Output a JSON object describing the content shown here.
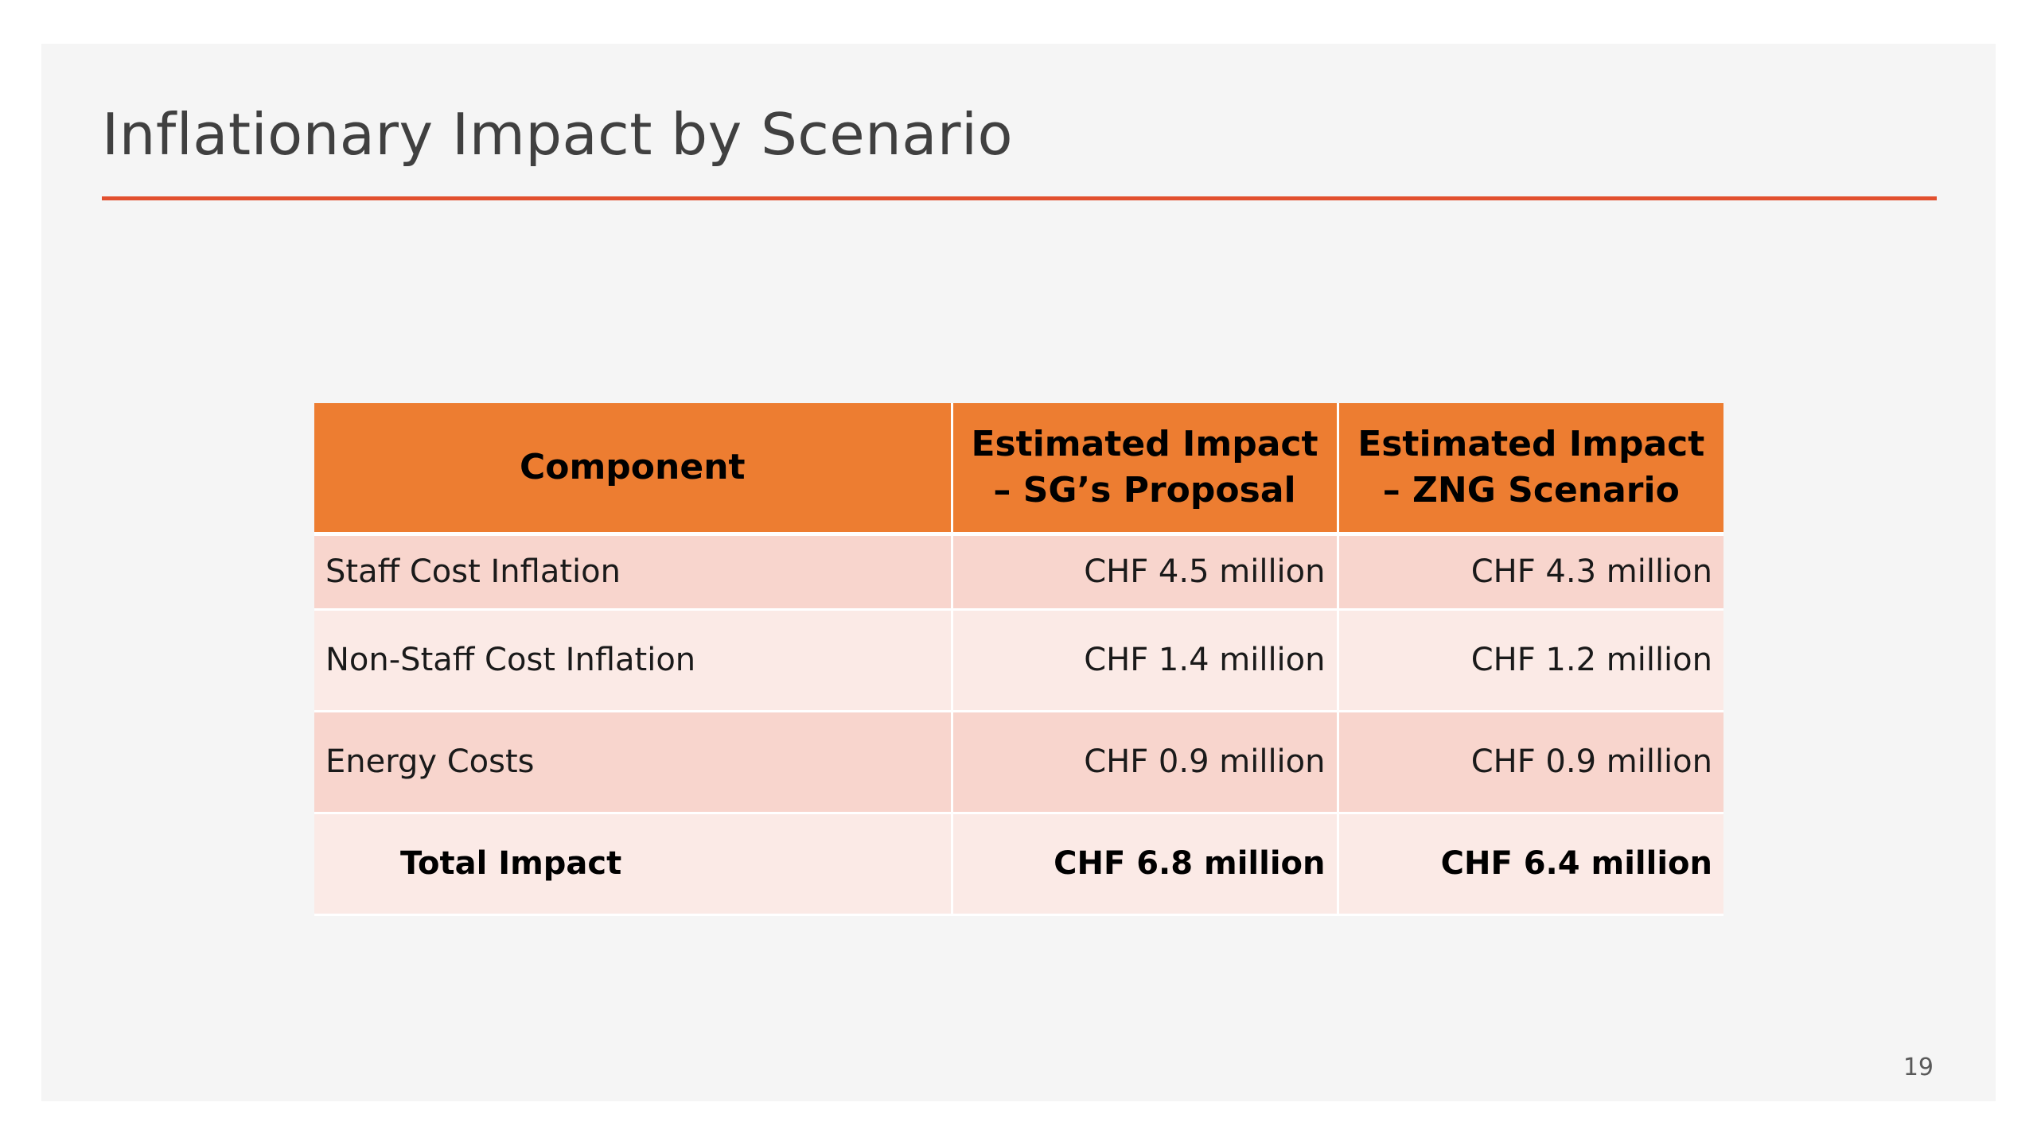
{
  "slide": {
    "title": "Inflationary Impact by Scenario",
    "page_number": "19",
    "accent_color": "#e2502f"
  },
  "table": {
    "header_color": "#ed7d31",
    "headers": [
      "Component",
      "Estimated Impact – SG’s Proposal",
      "Estimated Impact – ZNG Scenario"
    ],
    "rows": [
      [
        "Staff Cost Inflation",
        "CHF 4.5 million",
        "CHF 4.3 million"
      ],
      [
        "Non-Staff Cost Inflation",
        "CHF 1.4 million",
        "CHF 1.2 million"
      ],
      [
        "Energy Costs",
        "CHF 0.9 million",
        "CHF 0.9 million"
      ]
    ],
    "total": [
      "Total Impact",
      "CHF 6.8 million",
      "CHF 6.4 million"
    ]
  }
}
